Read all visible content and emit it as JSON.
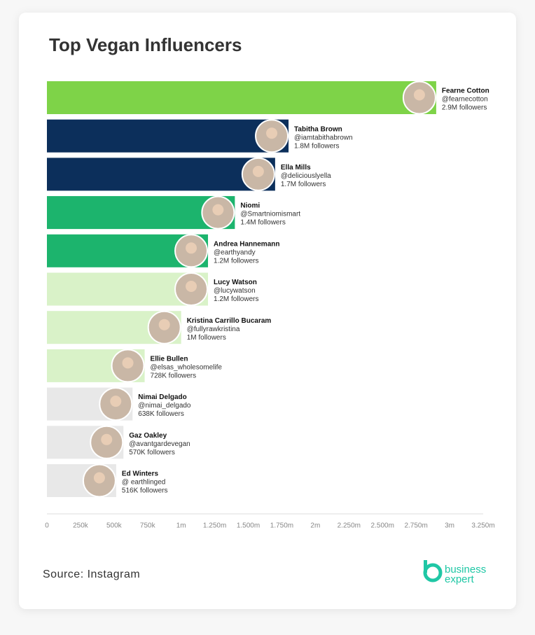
{
  "chart_data": {
    "type": "hbar",
    "title": "Top Vegan Influencers",
    "categories": [
      "Fearne Cotton",
      "Tabitha Brown",
      "Ella Mills",
      "Niomi",
      "Andrea Hannemann",
      "Lucy  Watson",
      "Kristina Carrillo Bucaram",
      "Ellie Bullen",
      "Nimai Delgado",
      "Gaz Oakley",
      "Ed Winters"
    ],
    "handles": [
      "@fearnecotton",
      "@iamtabithabrown",
      "@deliciouslyella",
      "@Smartniomismart",
      "@earthyandy",
      "@lucywatson",
      "@fullyrawkristina",
      "@elsas_wholesomelife",
      "@nimai_delgado",
      "@avantgardevegan",
      "@ earthlinged"
    ],
    "values": [
      2900000,
      1800000,
      1700000,
      1400000,
      1200000,
      1200000,
      1000000,
      728000,
      638000,
      570000,
      516000
    ],
    "value_labels": [
      "2.9M followers",
      "1.8M followers",
      "1.7M followers",
      "1.4M followers",
      "1.2M followers",
      "1.2M followers",
      "1M followers",
      "728K  followers",
      "638K  followers",
      "570K followers",
      "516K followers"
    ],
    "colors": [
      "#7ed348",
      "#0c2f5b",
      "#0c2f5b",
      "#1cb46d",
      "#1cb46d",
      "#d9f2c8",
      "#d9f2c8",
      "#d9f2c8",
      "#e8e8e8",
      "#e8e8e8",
      "#e8e8e8"
    ],
    "xlim": [
      0,
      3250000
    ],
    "xticks": [
      0,
      {
        "value": 250000,
        "label": "250k"
      },
      {
        "value": 500000,
        "label": "500k"
      },
      {
        "value": 750000,
        "label": "750k"
      },
      {
        "value": 1000000,
        "label": "1m"
      },
      {
        "value": 1250000,
        "label": "1.250m"
      },
      {
        "value": 1500000,
        "label": "1.500m"
      },
      {
        "value": 1750000,
        "label": "1.750m"
      },
      {
        "value": 2000000,
        "label": "2m"
      },
      {
        "value": 2250000,
        "label": "2.250m"
      },
      {
        "value": 2500000,
        "label": "2.500m"
      },
      {
        "value": 2750000,
        "label": "2.750m"
      },
      {
        "value": 3000000,
        "label": "3m"
      },
      {
        "value": 3250000,
        "label": "3.250m"
      }
    ],
    "source": "Source: Instagram",
    "logo": [
      "business",
      "expert"
    ]
  }
}
